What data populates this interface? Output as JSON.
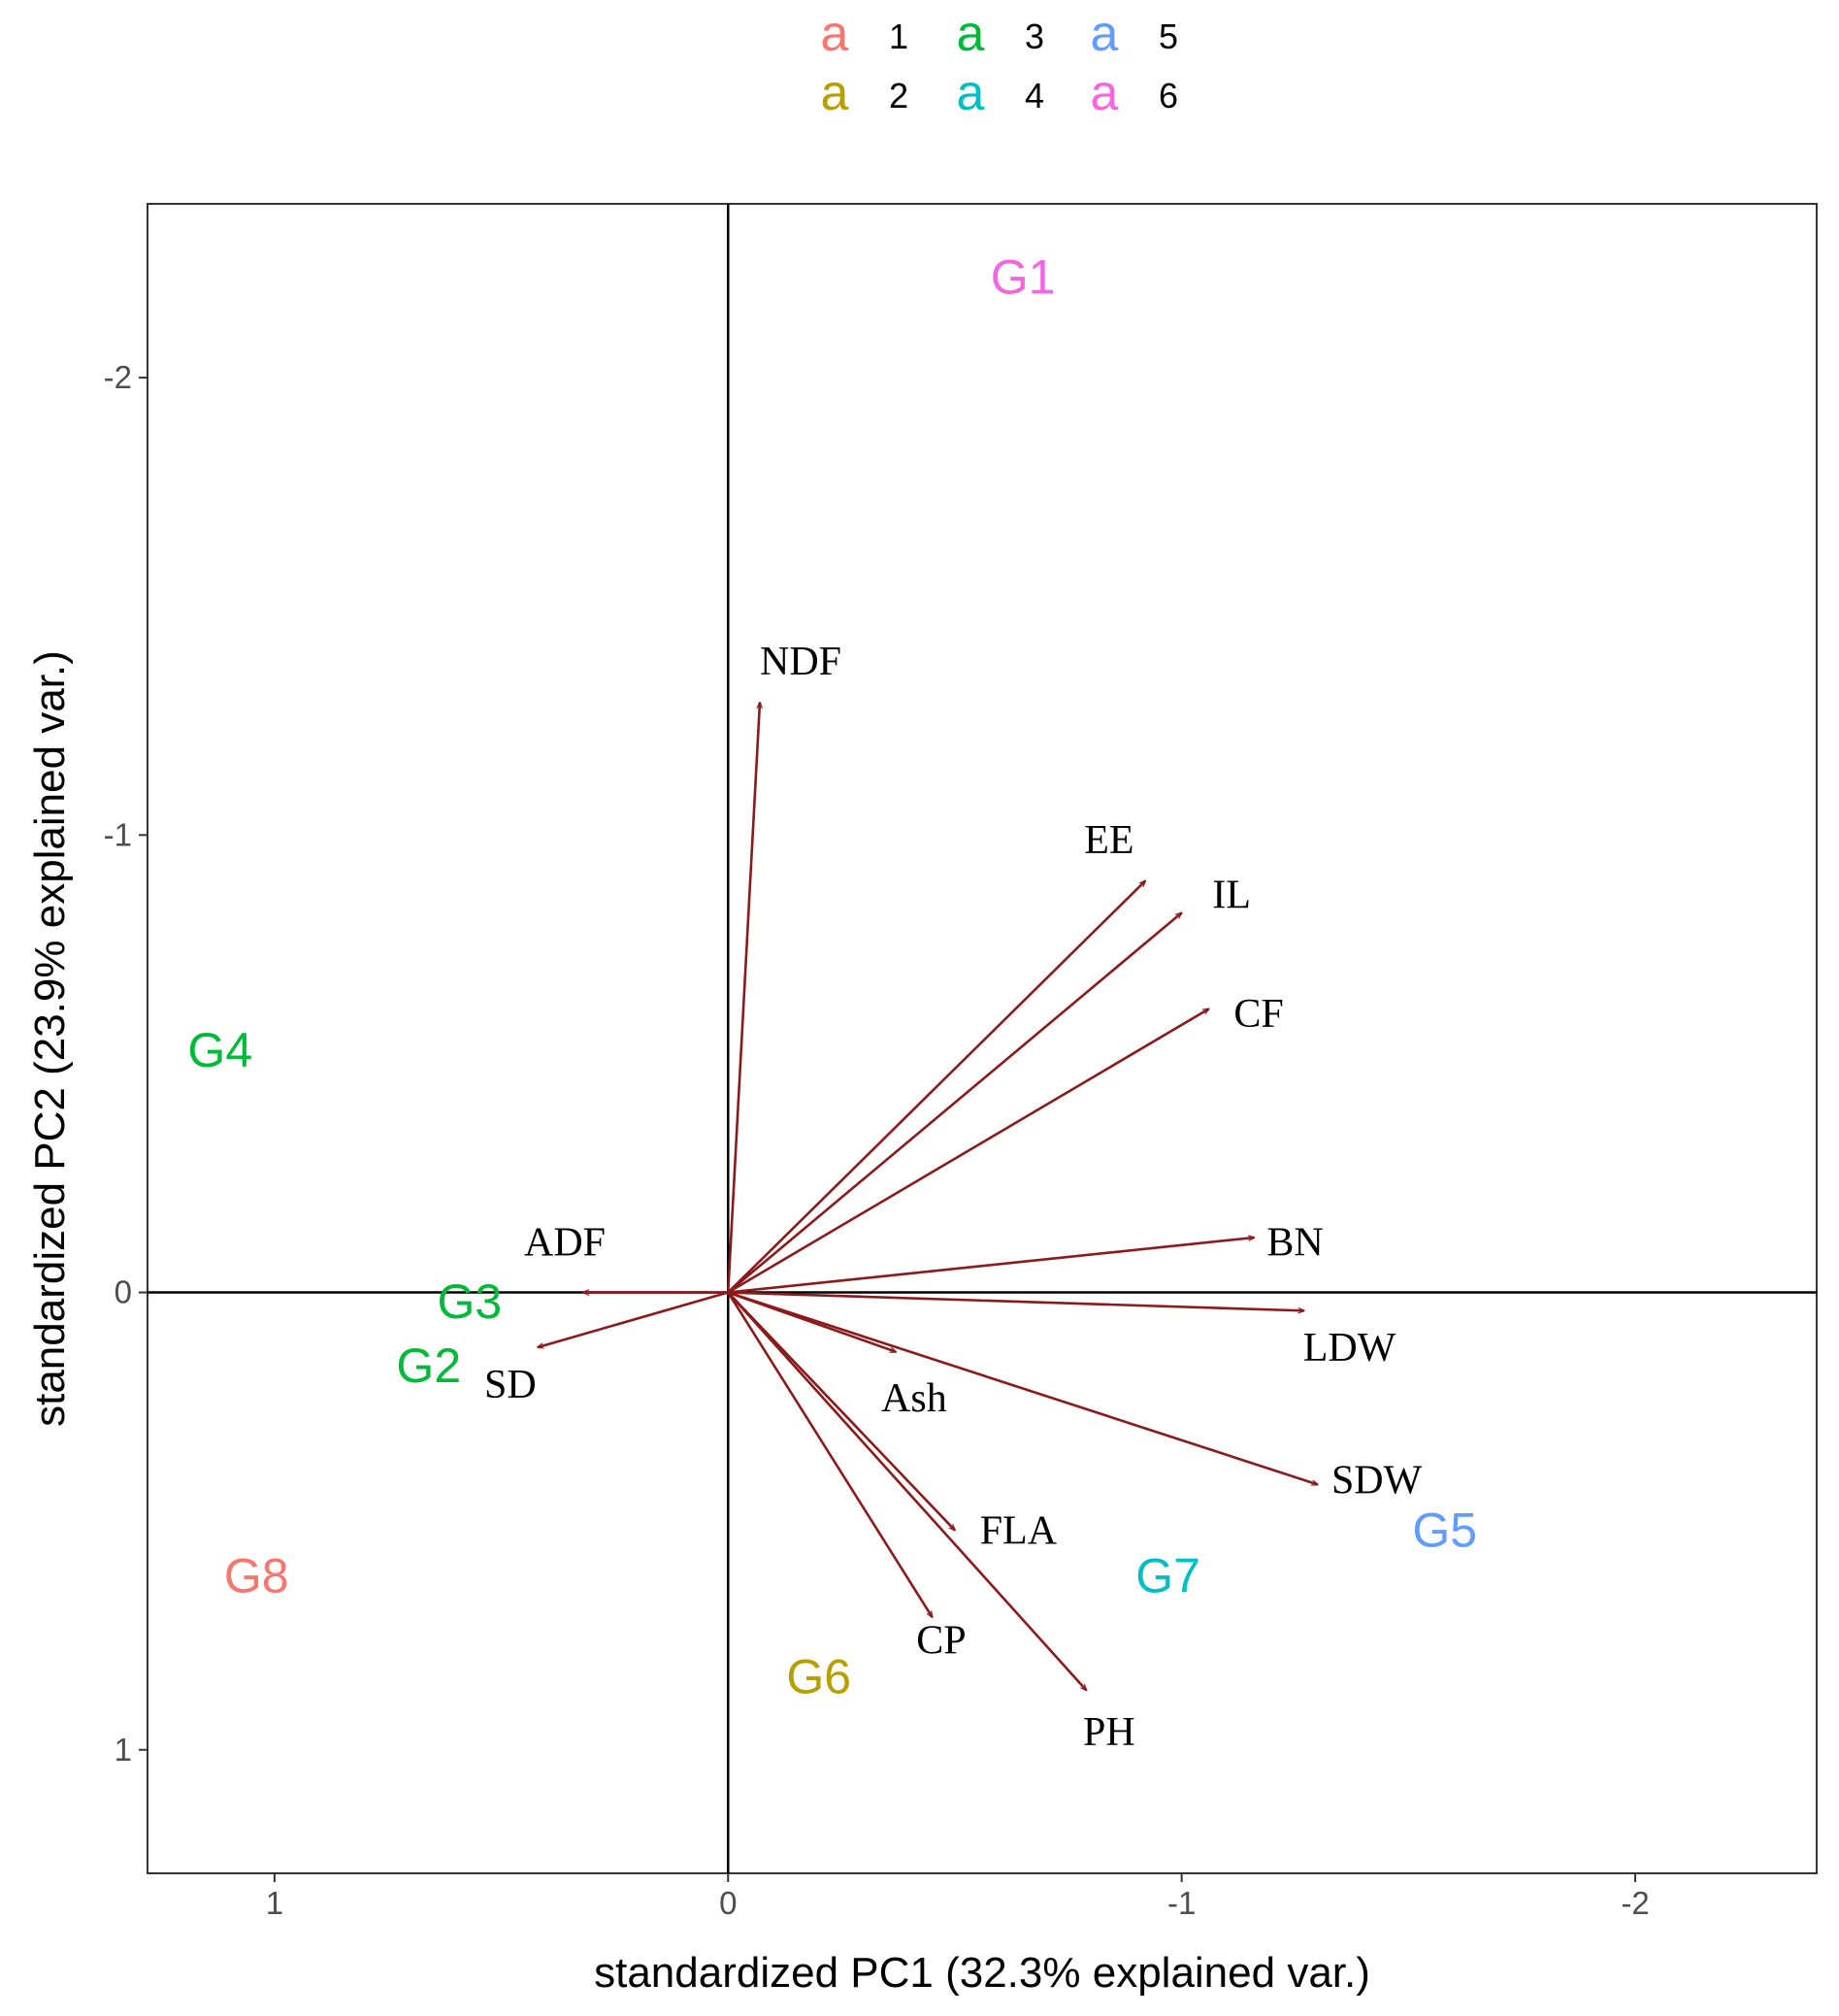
{
  "chart_data": {
    "type": "scatter",
    "subtype": "pca-biplot",
    "title": "",
    "xlabel": "standardized PC1 (32.3% explained var.)",
    "ylabel": "standardized PC2 (23.9% explained var.)",
    "xlim": [
      1.28,
      -2.4
    ],
    "ylim": [
      -2.38,
      1.27
    ],
    "x_ticks": [
      {
        "value": 1,
        "label": "1"
      },
      {
        "value": 0,
        "label": "0"
      },
      {
        "value": -1,
        "label": "-1"
      },
      {
        "value": -2,
        "label": "-2"
      }
    ],
    "y_ticks": [
      {
        "value": -2,
        "label": "-2"
      },
      {
        "value": -1,
        "label": "-1"
      },
      {
        "value": 0,
        "label": "0"
      },
      {
        "value": 1,
        "label": "1"
      }
    ],
    "grid": false,
    "reference_lines": {
      "x": 0,
      "y": 0
    },
    "legend": {
      "placement": "top-center",
      "swatch_glyph": "a",
      "entries": [
        {
          "label": "1",
          "color": "#F8766D"
        },
        {
          "label": "2",
          "color": "#B79F00"
        },
        {
          "label": "3",
          "color": "#00BA38"
        },
        {
          "label": "4",
          "color": "#00BFC4"
        },
        {
          "label": "5",
          "color": "#619CFF"
        },
        {
          "label": "6",
          "color": "#F564E3"
        }
      ]
    },
    "groups": [
      {
        "label": "G1",
        "group": "6",
        "color": "#F564E3",
        "x": -0.65,
        "y": -2.22
      },
      {
        "label": "G2",
        "group": "3",
        "color": "#00BA38",
        "x": 0.66,
        "y": 0.16
      },
      {
        "label": "G3",
        "group": "3",
        "color": "#00BA38",
        "x": 0.57,
        "y": 0.02
      },
      {
        "label": "G4",
        "group": "3",
        "color": "#00BA38",
        "x": 1.12,
        "y": -0.53
      },
      {
        "label": "G5",
        "group": "5",
        "color": "#619CFF",
        "x": -1.58,
        "y": 0.52
      },
      {
        "label": "G6",
        "group": "2",
        "color": "#B79F00",
        "x": -0.2,
        "y": 0.84
      },
      {
        "label": "G7",
        "group": "4",
        "color": "#00BFC4",
        "x": -0.97,
        "y": 0.62
      },
      {
        "label": "G8",
        "group": "1",
        "color": "#F8766D",
        "x": 1.04,
        "y": 0.62
      }
    ],
    "loadings": [
      {
        "name": "NDF",
        "x": -0.07,
        "y": -1.29,
        "label_x": -0.16,
        "label_y": -1.38
      },
      {
        "name": "EE",
        "x": -0.92,
        "y": -0.9,
        "label_x": -0.84,
        "label_y": -0.99
      },
      {
        "name": "IL",
        "x": -1.0,
        "y": -0.83,
        "label_x": -1.11,
        "label_y": -0.87
      },
      {
        "name": "CF",
        "x": -1.06,
        "y": -0.62,
        "label_x": -1.17,
        "label_y": -0.61
      },
      {
        "name": "BN",
        "x": -1.16,
        "y": -0.12,
        "label_x": -1.25,
        "label_y": -0.11
      },
      {
        "name": "ADF",
        "x": 0.32,
        "y": 0.0,
        "label_x": 0.36,
        "label_y": -0.11
      },
      {
        "name": "SD",
        "x": 0.42,
        "y": 0.12,
        "label_x": 0.48,
        "label_y": 0.2
      },
      {
        "name": "LDW",
        "x": -1.27,
        "y": 0.04,
        "label_x": -1.37,
        "label_y": 0.12
      },
      {
        "name": "Ash",
        "x": -0.37,
        "y": 0.13,
        "label_x": -0.41,
        "label_y": 0.23
      },
      {
        "name": "SDW",
        "x": -1.3,
        "y": 0.42,
        "label_x": -1.43,
        "label_y": 0.41
      },
      {
        "name": "FLA",
        "x": -0.5,
        "y": 0.52,
        "label_x": -0.64,
        "label_y": 0.52
      },
      {
        "name": "CP",
        "x": -0.45,
        "y": 0.71,
        "label_x": -0.47,
        "label_y": 0.76
      },
      {
        "name": "PH",
        "x": -0.79,
        "y": 0.87,
        "label_x": -0.84,
        "label_y": 0.96
      }
    ],
    "arrow_color": "#8B1A1A"
  }
}
